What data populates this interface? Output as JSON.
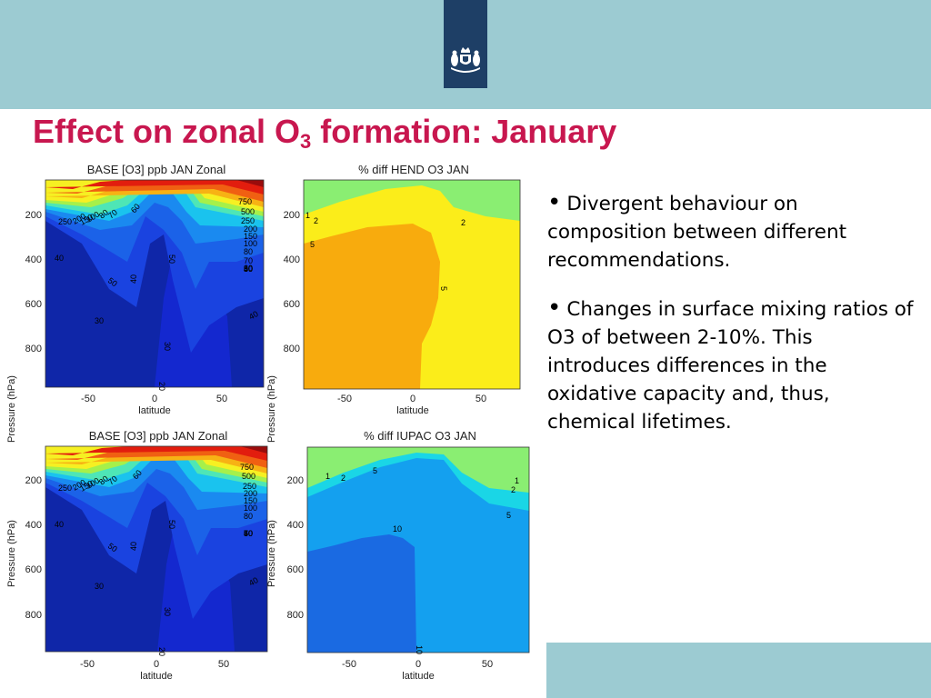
{
  "slide": {
    "title_main": "Effect on zonal O",
    "title_sub": "3",
    "title_rest": " formation: January",
    "bullets": [
      "Divergent behaviour on composition between different recommendations.",
      "Changes in surface mixing ratios of O3 of between 2-10%. This introduces differences in the oxidative capacity and, thus, chemical lifetimes."
    ]
  },
  "colors": {
    "band": "#9ccbd2",
    "title": "#c8174f",
    "logo": "#1e3f66"
  },
  "plots": {
    "base_top": {
      "title": "BASE [O3] ppb JAN Zonal",
      "ylabel": "Pressure (hPa)",
      "xlabel": "latitude",
      "xticks": [
        "-50",
        "0",
        "50"
      ],
      "yticks": [
        "200",
        "400",
        "600",
        "800"
      ],
      "contour_labels": [
        "250",
        "200",
        "150",
        "100",
        "80",
        "70",
        "60",
        "50",
        "40",
        "50",
        "40",
        "30",
        "40",
        "30",
        "20",
        "750",
        "500",
        "250",
        "200",
        "150",
        "100",
        "80",
        "70",
        "60",
        "50",
        "40",
        "30"
      ]
    },
    "hend": {
      "title": "% diff HEND O3 JAN",
      "xlabel": "latitude",
      "xticks": [
        "-50",
        "0",
        "50"
      ],
      "yticks": [
        "200",
        "400",
        "600",
        "800"
      ],
      "contour_labels": [
        "2",
        "1",
        "2",
        "5",
        "5"
      ]
    },
    "base_bottom": {
      "title": "BASE [O3] ppb JAN Zonal",
      "ylabel": "Pressure (hPa)",
      "xlabel": "latitude",
      "xticks": [
        "-50",
        "0",
        "50"
      ],
      "yticks": [
        "200",
        "400",
        "600",
        "800"
      ],
      "contour_labels": [
        "250",
        "200",
        "150",
        "100",
        "80",
        "70",
        "60",
        "50",
        "40",
        "50",
        "40",
        "30",
        "40",
        "30",
        "20",
        "750",
        "500",
        "250",
        "200",
        "150",
        "100",
        "80",
        "70",
        "60",
        "50",
        "40",
        "30"
      ]
    },
    "iupac": {
      "title": "% diff IUPAC O3 JAN",
      "xlabel": "latitude",
      "xticks": [
        "-50",
        "0",
        "50"
      ],
      "yticks": [
        "200",
        "400",
        "600",
        "800"
      ],
      "contour_labels": [
        "1",
        "2",
        "5",
        "1",
        "2",
        "5",
        "10",
        "10"
      ]
    }
  }
}
